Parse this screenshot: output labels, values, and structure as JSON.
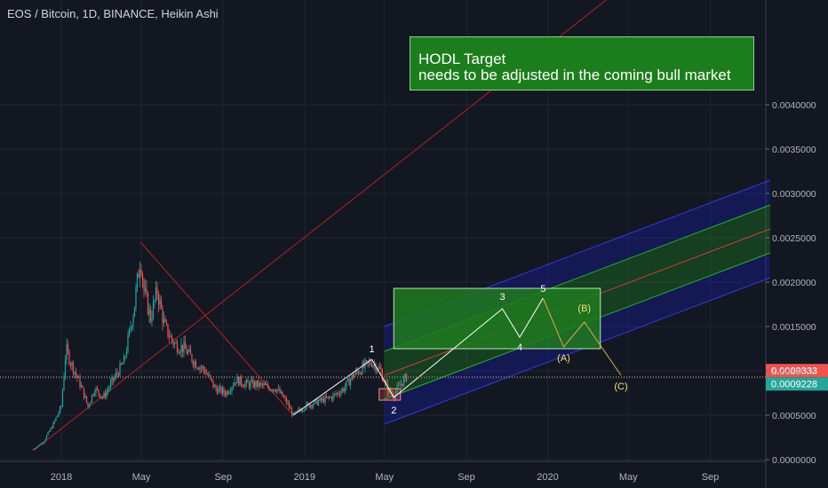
{
  "chart_data": {
    "type": "candlestick",
    "title": "EOS / Bitcoin, 1D, BINANCE, Heikin Ashi",
    "y_tick_labels": [
      "0.0040000",
      "0.0035000",
      "0.0030000",
      "0.0025000",
      "0.0020000",
      "0.0015000",
      "0.0010000",
      "0.0005000",
      "0.0000000"
    ],
    "y_ticks": [
      0.004,
      0.0035,
      0.003,
      0.0025,
      0.002,
      0.0015,
      0.001,
      0.0005,
      0.0
    ],
    "x_tick_labels": [
      "2018",
      "May",
      "Sep",
      "2019",
      "May",
      "Sep",
      "2020",
      "May",
      "Sep"
    ],
    "price_series": [
      [
        "2017-11-20",
        0.00012
      ],
      [
        "2017-12-05",
        0.0002
      ],
      [
        "2017-12-20",
        0.0004
      ],
      [
        "2018-01-01",
        0.0006
      ],
      [
        "2018-01-08",
        0.00125
      ],
      [
        "2018-01-15",
        0.0011
      ],
      [
        "2018-02-01",
        0.0008
      ],
      [
        "2018-02-10",
        0.0006
      ],
      [
        "2018-02-20",
        0.0008
      ],
      [
        "2018-03-05",
        0.0007
      ],
      [
        "2018-03-20",
        0.0009
      ],
      [
        "2018-04-05",
        0.0011
      ],
      [
        "2018-04-20",
        0.0017
      ],
      [
        "2018-04-30",
        0.0023
      ],
      [
        "2018-05-05",
        0.0019
      ],
      [
        "2018-05-15",
        0.0016
      ],
      [
        "2018-05-25",
        0.0019
      ],
      [
        "2018-06-05",
        0.0015
      ],
      [
        "2018-06-20",
        0.0013
      ],
      [
        "2018-07-05",
        0.00125
      ],
      [
        "2018-07-20",
        0.0011
      ],
      [
        "2018-08-05",
        0.001
      ],
      [
        "2018-08-20",
        0.0008
      ],
      [
        "2018-09-05",
        0.00075
      ],
      [
        "2018-09-20",
        0.0009
      ],
      [
        "2018-10-05",
        0.00085
      ],
      [
        "2018-10-20",
        0.00085
      ],
      [
        "2018-11-05",
        0.00082
      ],
      [
        "2018-11-20",
        0.0008
      ],
      [
        "2018-12-05",
        0.00065
      ],
      [
        "2018-12-15",
        0.0005
      ],
      [
        "2019-01-01",
        0.0006
      ],
      [
        "2019-01-20",
        0.00065
      ],
      [
        "2019-02-10",
        0.0007
      ],
      [
        "2019-03-01",
        0.0008
      ],
      [
        "2019-03-15",
        0.00095
      ],
      [
        "2019-04-01",
        0.00105
      ],
      [
        "2019-04-12",
        0.0011
      ],
      [
        "2019-04-25",
        0.001
      ],
      [
        "2019-05-05",
        0.0008
      ],
      [
        "2019-05-15",
        0.00072
      ],
      [
        "2019-05-25",
        0.00085
      ],
      [
        "2019-06-03",
        0.00093
      ]
    ],
    "last_price": "0.0009333",
    "second_price": "0.0009228",
    "wave_labels": [
      "1",
      "2",
      "3",
      "4",
      "5",
      "(A)",
      "(B)",
      "(C)"
    ],
    "wave_path": [
      [
        "2019-04-12",
        0.00113
      ],
      [
        "2019-05-15",
        0.0007
      ],
      [
        "2019-10-25",
        0.0017
      ],
      [
        "2019-11-20",
        0.00138
      ],
      [
        "2019-12-25",
        0.00182
      ],
      [
        "2020-01-25",
        0.00127
      ],
      [
        "2020-02-25",
        0.00155
      ],
      [
        "2020-04-20",
        0.00095
      ]
    ],
    "colors": {
      "background": "#131722",
      "candle_up": "#26a69a",
      "candle_down": "#ef5350",
      "trend_line": "#b22222",
      "channel_blue": "#1a22d6",
      "channel_green": "#1fa41f",
      "target_box": "#1e7a1e",
      "last_price_label": "#ef5350",
      "second_price_label": "#26a69a"
    }
  },
  "annotation": {
    "line1": "HODL Target",
    "line2": "needs to be adjusted in the coming bull market"
  }
}
